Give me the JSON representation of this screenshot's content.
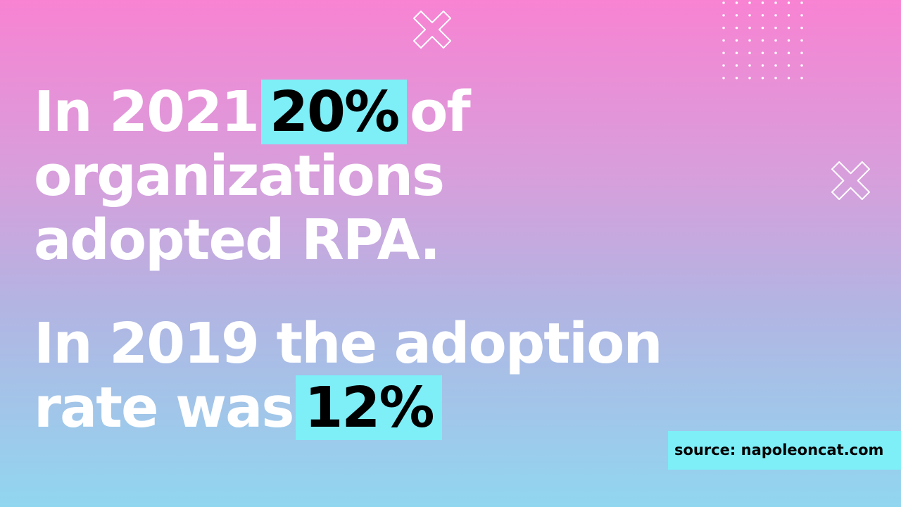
{
  "stat_one": {
    "line1_before": "In 2021",
    "line1_highlight": "20%",
    "line1_after": "of",
    "line2": "organizations",
    "line3": "adopted RPA."
  },
  "stat_two": {
    "line1": "In 2019 the adoption",
    "line2_before": "rate was",
    "line2_highlight": "12%"
  },
  "source": "source: napoleoncat.com",
  "icons": {
    "cross_top": "x-cross-icon",
    "cross_right": "x-cross-icon",
    "dots": "dot-grid-pattern"
  },
  "colors": {
    "gradient_top": "#f883d3",
    "gradient_bottom": "#91d6ef",
    "highlight": "#7eeef7",
    "text": "#ffffff"
  }
}
